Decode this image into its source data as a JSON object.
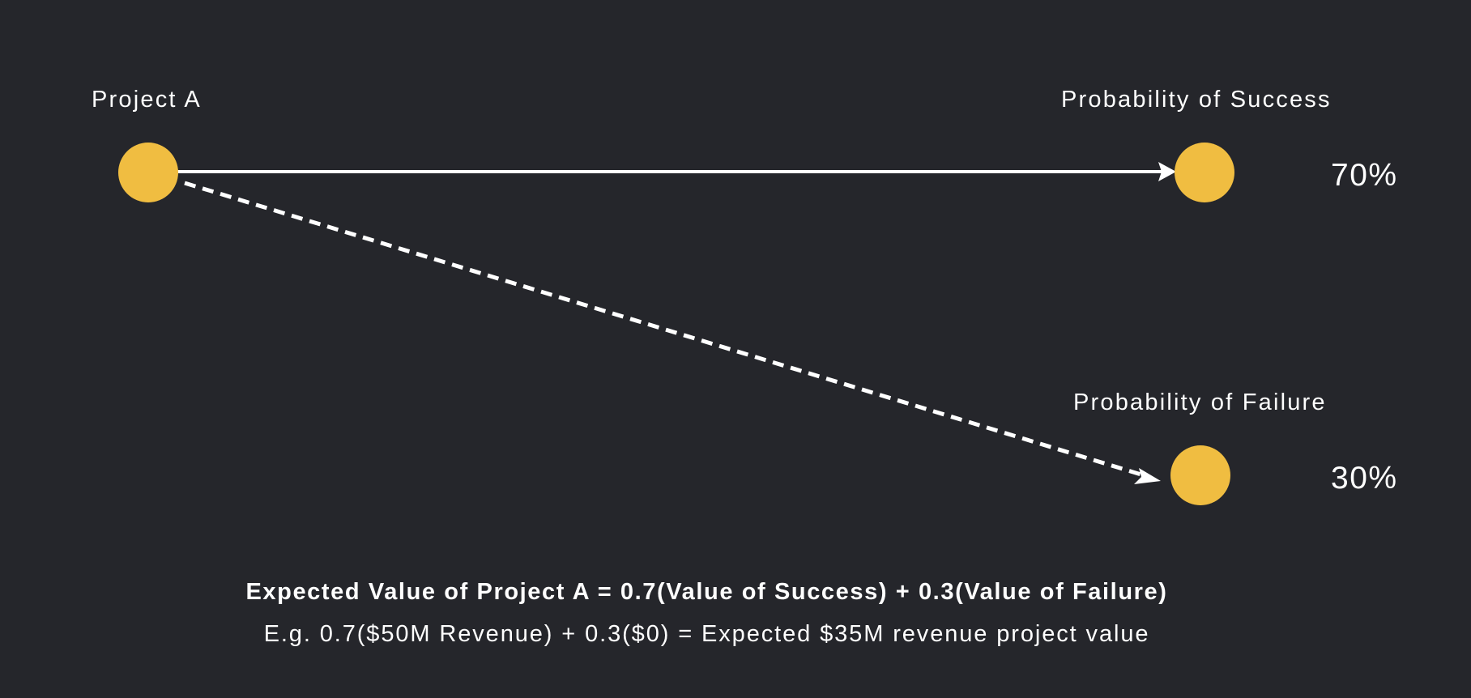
{
  "nodes": {
    "root": {
      "label": "Project A",
      "color": "#f0bd41"
    },
    "success": {
      "label": "Probability of Success",
      "percent": "70%",
      "color": "#f0bd41"
    },
    "failure": {
      "label": "Probability of Failure",
      "percent": "30%",
      "color": "#f0bd41"
    }
  },
  "edges": {
    "success": {
      "style": "solid",
      "color": "#ffffff"
    },
    "failure": {
      "style": "dashed",
      "color": "#ffffff"
    }
  },
  "formula": {
    "main": "Expected Value of Project A = 0.7(Value of Success) + 0.3(Value of Failure)",
    "example": "E.g. 0.7($50M Revenue) + 0.3($0) = Expected $35M revenue project value"
  }
}
